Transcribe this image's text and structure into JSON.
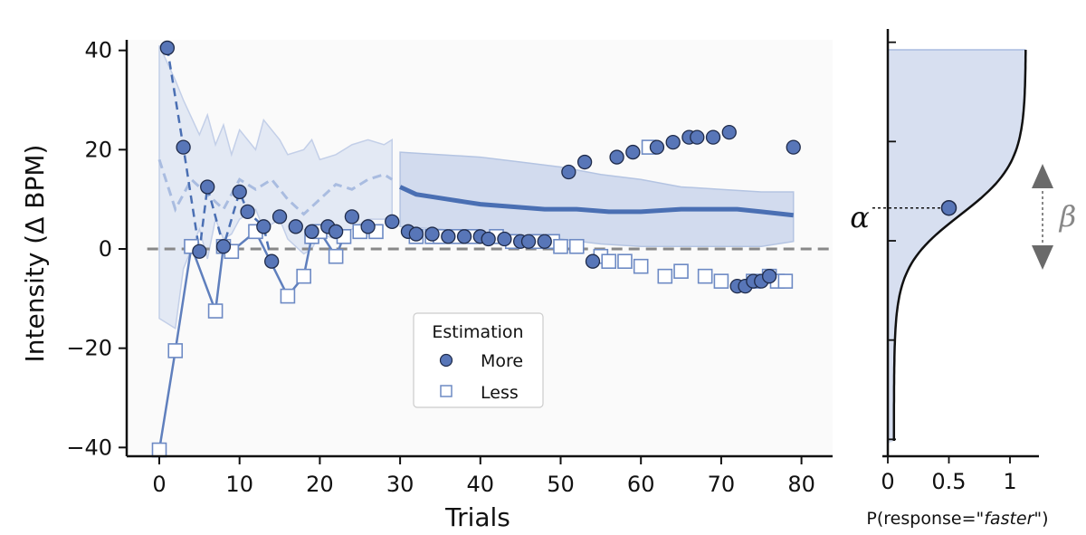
{
  "chart_data": [
    {
      "type": "scatter",
      "title": "",
      "xlabel": "Trials",
      "ylabel": "Intensity (Δ BPM)",
      "xlim": [
        -2,
        84
      ],
      "ylim": [
        -42,
        43
      ],
      "xticks": [
        "0",
        "10",
        "20",
        "30",
        "40",
        "50",
        "60",
        "70",
        "80"
      ],
      "yticks": [
        "−40",
        "−20",
        "0",
        "20",
        "40"
      ],
      "reference_line_y": 0,
      "legend": {
        "title": "Estimation",
        "placement": "lower-center",
        "entries": [
          "More",
          "Less"
        ]
      },
      "colors": {
        "dark": "#4a6fb3",
        "light": "#a9bce0",
        "band": "#dbe3f1",
        "marker_fill": "#5876b8",
        "reference": "#888888"
      },
      "series": [
        {
          "name": "More",
          "x": [
            1,
            3,
            5,
            6,
            8,
            10,
            11,
            13,
            14,
            15,
            17,
            19,
            21,
            22,
            24,
            26,
            29,
            31,
            32,
            34,
            36,
            38,
            40,
            41,
            43,
            45,
            46,
            48,
            51,
            53,
            54,
            57,
            59,
            62,
            64,
            66,
            67,
            69,
            71,
            72,
            73,
            74,
            75,
            76,
            79
          ],
          "y": [
            40.5,
            20.5,
            -0.5,
            12.5,
            0.5,
            11.5,
            7.5,
            4.5,
            -2.5,
            6.5,
            4.5,
            3.5,
            4.5,
            3.5,
            6.5,
            4.5,
            5.5,
            3.5,
            3.0,
            3.0,
            2.5,
            2.5,
            2.5,
            2.0,
            2.0,
            1.5,
            1.5,
            1.5,
            15.5,
            17.5,
            -2.5,
            18.5,
            19.5,
            20.5,
            21.5,
            22.5,
            22.5,
            22.5,
            23.5,
            -7.5,
            -7.5,
            -6.5,
            -6.5,
            -5.5,
            20.5
          ]
        },
        {
          "name": "Less",
          "x": [
            0,
            2,
            4,
            7,
            8,
            9,
            12,
            16,
            18,
            19,
            20,
            22,
            23,
            25,
            27,
            32,
            34,
            35,
            37,
            39,
            42,
            44,
            47,
            49,
            50,
            52,
            55,
            56,
            58,
            60,
            61,
            63,
            65,
            68,
            70,
            74,
            76,
            77,
            78
          ],
          "y": [
            -40.5,
            -20.5,
            0.5,
            -12.5,
            0.5,
            -0.5,
            3.5,
            -9.5,
            -5.5,
            2.5,
            3.5,
            -1.5,
            2.5,
            3.5,
            3.5,
            2.5,
            2.5,
            2.5,
            2.5,
            2.5,
            2.5,
            1.5,
            1.5,
            1.5,
            0.5,
            0.5,
            -1.5,
            -2.5,
            -2.5,
            -3.5,
            20.5,
            -5.5,
            -4.5,
            -5.5,
            -6.5,
            -6.5,
            -5.5,
            -6.5,
            -6.5
          ]
        }
      ]
    },
    {
      "type": "area",
      "xlabel": "P(response=\"faster\")",
      "xlabel_prefix": "P(response=\"",
      "xlabel_emph": "faster",
      "xlabel_suffix": "\")",
      "xticks": [
        "0",
        "0.5",
        "1"
      ],
      "annotations": {
        "alpha": "α",
        "beta": "β"
      },
      "alpha_x": 0.5,
      "alpha_y": 6.8
    }
  ]
}
